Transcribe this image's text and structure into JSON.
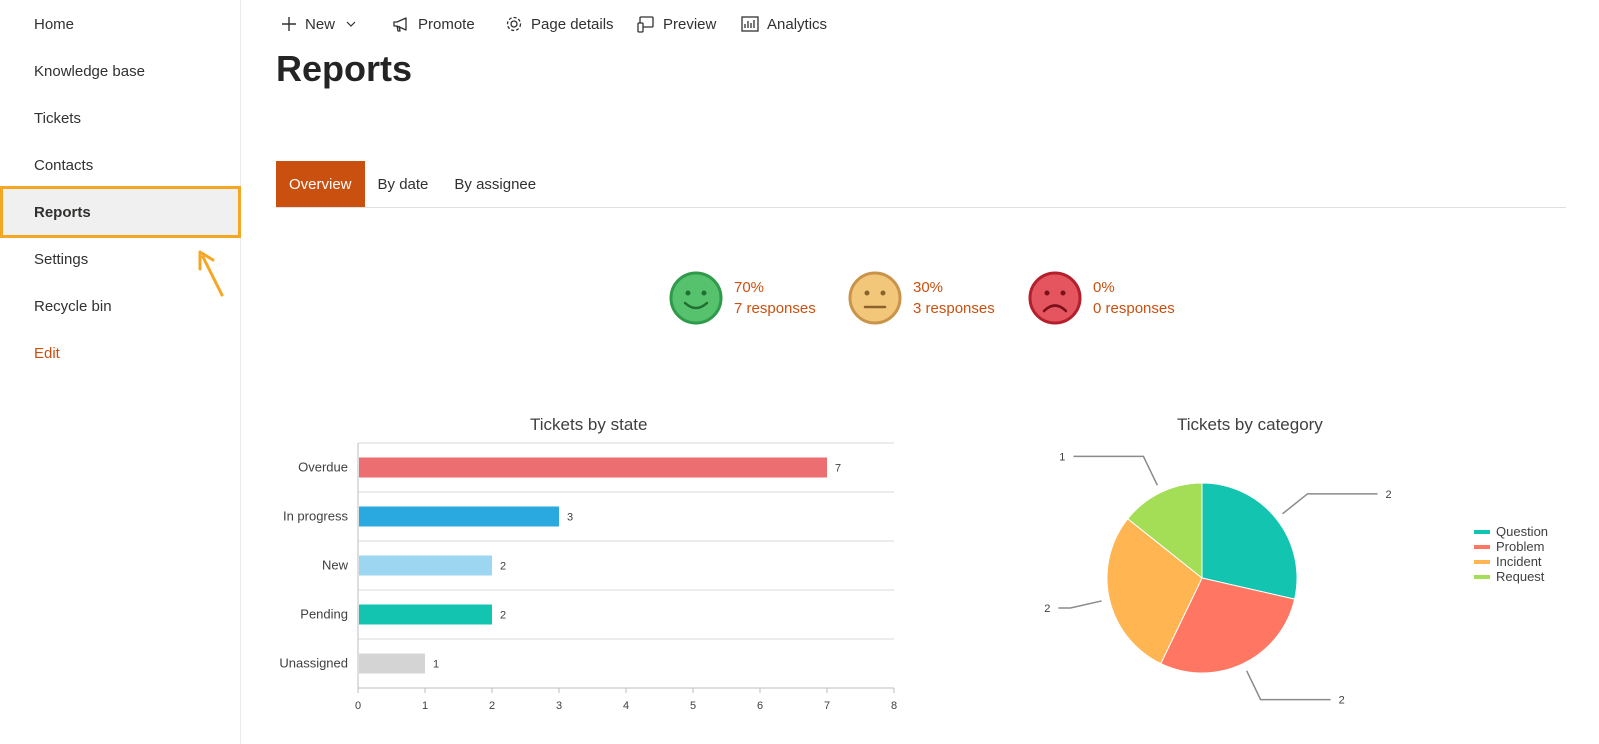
{
  "sidebar": {
    "items": [
      {
        "label": "Home"
      },
      {
        "label": "Knowledge base"
      },
      {
        "label": "Tickets"
      },
      {
        "label": "Contacts"
      },
      {
        "label": "Reports"
      },
      {
        "label": "Settings"
      },
      {
        "label": "Recycle bin"
      }
    ],
    "edit_label": "Edit",
    "selected": "Reports"
  },
  "toolbar": {
    "new_label": "New",
    "promote_label": "Promote",
    "page_details_label": "Page details",
    "preview_label": "Preview",
    "analytics_label": "Analytics"
  },
  "page": {
    "title": "Reports"
  },
  "tabs": [
    {
      "label": "Overview",
      "active": true
    },
    {
      "label": "By date",
      "active": false
    },
    {
      "label": "By assignee",
      "active": false
    }
  ],
  "satisfaction": [
    {
      "icon": "happy-face-icon",
      "percent": "70%",
      "responses": "7 responses",
      "color": "#57c26e"
    },
    {
      "icon": "neutral-face-icon",
      "percent": "30%",
      "responses": "3 responses",
      "color": "#f2c77a"
    },
    {
      "icon": "sad-face-icon",
      "percent": "0%",
      "responses": "0 responses",
      "color": "#e5555f"
    }
  ],
  "colors": {
    "accent": "#ca5010",
    "highlight": "#f5a623"
  },
  "chart_data": [
    {
      "type": "bar",
      "orientation": "horizontal",
      "title": "Tickets by state",
      "categories": [
        "Overdue",
        "In progress",
        "New",
        "Pending",
        "Unassigned"
      ],
      "values": [
        7,
        3,
        2,
        2,
        1
      ],
      "colors": [
        "#ec6e71",
        "#29a9df",
        "#9dd6f1",
        "#13c4b0",
        "#d4d4d4"
      ],
      "xlim": [
        0,
        8
      ],
      "xticks": [
        "0",
        "1",
        "2",
        "3",
        "4",
        "5",
        "6",
        "7",
        "8"
      ],
      "grid": true
    },
    {
      "type": "pie",
      "title": "Tickets by category",
      "labels": [
        "Question",
        "Problem",
        "Incident",
        "Request"
      ],
      "values": [
        2,
        2,
        2,
        1
      ],
      "colors": [
        "#13c4b0",
        "#ff7763",
        "#ffb552",
        "#a4dd56"
      ],
      "legend": "right"
    }
  ]
}
